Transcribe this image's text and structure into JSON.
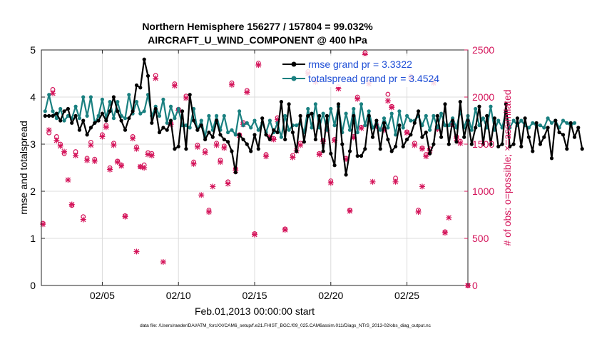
{
  "chart_data": {
    "type": "line",
    "title_line1": "Northern Hemisphere 156277 / 157804 = 99.032%",
    "title_line2": "AIRCRAFT_U_WIND_COMPONENT @ 400 hPa",
    "xlabel": "Feb.01,2013 00:00:00 start",
    "ylabel_left": "rmse and totalspread",
    "ylabel_right": "# of obs: o=possible; ×=assimilated",
    "footer": "data file: /Users/raeder/DAI/ATM_forcXX/CAM6_setup/f.e21.FHIST_BGC.f09_025.CAM6assim.011/Diags_NTrS_2013-02/obs_diag_output.nc",
    "x_range_days": [
      1,
      29
    ],
    "x_tick_days": [
      5,
      10,
      15,
      20,
      25
    ],
    "x_tick_labels": [
      "02/05",
      "02/10",
      "02/15",
      "02/20",
      "02/25"
    ],
    "y_left_range": [
      0,
      5
    ],
    "y_left_ticks": [
      "0",
      "1",
      "2",
      "3",
      "4",
      "5"
    ],
    "y_right_range": [
      0,
      2500
    ],
    "y_right_ticks": [
      "0",
      "500",
      "1000",
      "1500",
      "2000",
      "2500"
    ],
    "grid": true,
    "legend_position": "top-right",
    "legend": [
      {
        "label": "rmse grand pr = 3.3322",
        "color": "#000000"
      },
      {
        "label": "totalspread grand pr = 3.4524",
        "color": "#1a8080"
      }
    ],
    "x_start_day": 1.25,
    "x_step_days": 0.25,
    "rmse": [
      3.6,
      3.6,
      3.6,
      3.65,
      3.5,
      3.7,
      3.75,
      3.45,
      3.6,
      3.3,
      3.5,
      3.2,
      3.35,
      3.45,
      3.5,
      3.65,
      3.5,
      3.7,
      4.0,
      3.7,
      3.5,
      3.3,
      3.55,
      3.7,
      4.25,
      4.2,
      4.8,
      4.45,
      3.45,
      3.75,
      3.25,
      3.35,
      3.3,
      3.5,
      2.9,
      2.95,
      3.7,
      2.9,
      4.05,
      3.5,
      3.3,
      3.4,
      3.1,
      3.25,
      3.15,
      3.5,
      3.2,
      3.1,
      3.05,
      2.85,
      2.4,
      3.2,
      3.1,
      3.0,
      2.85,
      3.2,
      2.9,
      3.55,
      3.2,
      3.1,
      3.3,
      3.25,
      3.9,
      3.1,
      3.85,
      3.25,
      2.85,
      3.6,
      3.05,
      3.6,
      3.65,
      3.1,
      3.6,
      2.85,
      3.6,
      2.8,
      2.55,
      3.85,
      3.0,
      2.35,
      2.85,
      3.6,
      2.75,
      2.75,
      2.9,
      3.6,
      3.15,
      3.5,
      2.9,
      3.45,
      3.1,
      2.85,
      2.95,
      3.4,
      2.95,
      3.1,
      3.2,
      3.45,
      3.7,
      3.15,
      3.25,
      2.8,
      3.0,
      3.6,
      3.15,
      3.85,
      3.0,
      3.5,
      3.05,
      3.9,
      3.15,
      3.5,
      3.0,
      3.35,
      3.8,
      3.0,
      3.6,
      3.0,
      3.55,
      2.95,
      3.0,
      3.85,
      2.95,
      3.0,
      3.55,
      2.95,
      3.55,
      3.15,
      2.85,
      3.45,
      3.0,
      3.15,
      3.35,
      2.7,
      3.5,
      3.25,
      3.2,
      2.9,
      3.45,
      3.15,
      3.35,
      2.9
    ],
    "totalspread": [
      3.7,
      4.05,
      3.7,
      3.55,
      3.75,
      3.5,
      3.6,
      3.55,
      3.8,
      3.55,
      4.0,
      3.6,
      4.0,
      3.45,
      3.6,
      3.95,
      3.55,
      3.9,
      3.55,
      3.9,
      3.6,
      3.55,
      4.05,
      3.65,
      3.9,
      3.65,
      3.7,
      4.05,
      3.6,
      3.8,
      3.6,
      3.95,
      3.45,
      3.8,
      3.55,
      3.75,
      3.4,
      3.4,
      3.35,
      3.75,
      3.3,
      3.5,
      3.15,
      3.6,
      3.3,
      3.6,
      3.3,
      3.6,
      3.25,
      3.3,
      3.2,
      3.7,
      3.4,
      3.45,
      3.35,
      3.5,
      3.3,
      3.45,
      3.25,
      3.5,
      3.25,
      3.45,
      3.15,
      3.6,
      3.3,
      3.4,
      3.4,
      3.45,
      3.25,
      3.75,
      3.35,
      3.85,
      3.35,
      3.65,
      3.3,
      3.75,
      3.4,
      3.8,
      3.25,
      3.65,
      3.3,
      3.75,
      3.25,
      3.85,
      3.4,
      3.7,
      3.35,
      3.45,
      3.3,
      3.55,
      3.35,
      3.65,
      3.2,
      3.7,
      3.35,
      3.6,
      3.5,
      3.5,
      3.6,
      3.4,
      3.6,
      3.3,
      3.6,
      3.35,
      3.65,
      3.4,
      3.4,
      3.55,
      3.35,
      3.7,
      3.35,
      3.6,
      3.3,
      3.75,
      3.4,
      3.55,
      3.35,
      3.8,
      3.3,
      3.5,
      3.35,
      3.7,
      3.35,
      3.5,
      3.4,
      3.5,
      3.4,
      3.35,
      3.45,
      3.4,
      3.4,
      3.35,
      3.55,
      3.45,
      3.5,
      3.35,
      3.5,
      3.45,
      3.4,
      3.45
    ],
    "obs_possible": [
      [
        1.1,
        660
      ],
      [
        1.5,
        1620
      ],
      [
        1.75,
        2080
      ],
      [
        2.0,
        1580
      ],
      [
        2.25,
        1500
      ],
      [
        2.5,
        1400
      ],
      [
        3.0,
        850
      ],
      [
        3.25,
        1420
      ],
      [
        3.75,
        730
      ],
      [
        4.0,
        1350
      ],
      [
        4.25,
        1520
      ],
      [
        4.5,
        1340
      ],
      [
        5.0,
        1600
      ],
      [
        5.25,
        1700
      ],
      [
        5.5,
        1250
      ],
      [
        5.75,
        1510
      ],
      [
        6.0,
        1320
      ],
      [
        6.25,
        1280
      ],
      [
        6.5,
        740
      ],
      [
        7.0,
        1580
      ],
      [
        7.25,
        1470
      ],
      [
        7.5,
        1260
      ],
      [
        7.75,
        1280
      ],
      [
        8.0,
        1410
      ],
      [
        8.25,
        1400
      ],
      [
        8.5,
        2230
      ],
      [
        9.5,
        1720
      ],
      [
        9.75,
        2140
      ],
      [
        10.0,
        1870
      ],
      [
        10.5,
        2010
      ],
      [
        11.0,
        1310
      ],
      [
        11.25,
        1490
      ],
      [
        11.75,
        1430
      ],
      [
        12.0,
        800
      ],
      [
        12.5,
        1510
      ],
      [
        12.75,
        1330
      ],
      [
        13.0,
        1480
      ],
      [
        13.25,
        1100
      ],
      [
        13.5,
        2150
      ],
      [
        13.75,
        1240
      ],
      [
        14.0,
        1600
      ],
      [
        14.25,
        1730
      ],
      [
        14.5,
        2070
      ],
      [
        15.0,
        550
      ],
      [
        15.25,
        2360
      ],
      [
        15.75,
        1390
      ],
      [
        16.25,
        1560
      ],
      [
        16.5,
        1780
      ],
      [
        17.0,
        600
      ],
      [
        17.5,
        1380
      ],
      [
        18.0,
        1510
      ],
      [
        18.5,
        2270
      ],
      [
        19.0,
        2180
      ],
      [
        19.25,
        1400
      ],
      [
        19.5,
        1540
      ],
      [
        20.0,
        1110
      ],
      [
        20.25,
        1550
      ],
      [
        20.5,
        2110
      ],
      [
        21.0,
        1350
      ],
      [
        21.25,
        800
      ],
      [
        21.5,
        1580
      ],
      [
        21.75,
        2000
      ],
      [
        22.0,
        1680
      ],
      [
        22.25,
        2470
      ],
      [
        22.5,
        2160
      ],
      [
        23.0,
        1700
      ],
      [
        23.5,
        1660
      ],
      [
        23.75,
        2030
      ],
      [
        24.0,
        1900
      ],
      [
        24.25,
        1140
      ],
      [
        25.0,
        1630
      ],
      [
        25.25,
        2220
      ],
      [
        25.5,
        1510
      ],
      [
        25.75,
        800
      ],
      [
        26.0,
        1460
      ],
      [
        26.25,
        1390
      ],
      [
        26.5,
        1450
      ],
      [
        26.75,
        2170
      ],
      [
        27.0,
        1680
      ],
      [
        27.5,
        570
      ],
      [
        28.0,
        1730
      ],
      [
        28.25,
        1580
      ],
      [
        28.5,
        1530
      ],
      [
        29.0,
        0
      ]
    ],
    "obs_assimilated": [
      [
        1.1,
        650
      ],
      [
        1.5,
        1650
      ],
      [
        1.75,
        2040
      ],
      [
        2.0,
        1540
      ],
      [
        2.25,
        1480
      ],
      [
        2.5,
        1420
      ],
      [
        3.0,
        860
      ],
      [
        3.25,
        1380
      ],
      [
        3.75,
        700
      ],
      [
        4.0,
        1330
      ],
      [
        4.25,
        1490
      ],
      [
        4.5,
        1320
      ],
      [
        5.0,
        1580
      ],
      [
        5.25,
        1680
      ],
      [
        5.5,
        1230
      ],
      [
        5.75,
        1490
      ],
      [
        6.0,
        1310
      ],
      [
        6.25,
        1270
      ],
      [
        6.5,
        730
      ],
      [
        7.0,
        1560
      ],
      [
        7.25,
        1450
      ],
      [
        7.5,
        1260
      ],
      [
        7.75,
        1250
      ],
      [
        8.0,
        1390
      ],
      [
        8.25,
        1380
      ],
      [
        8.5,
        2200
      ],
      [
        9.5,
        1710
      ],
      [
        9.75,
        2120
      ],
      [
        10.0,
        1860
      ],
      [
        10.5,
        1990
      ],
      [
        11.0,
        1290
      ],
      [
        11.25,
        1470
      ],
      [
        11.75,
        1410
      ],
      [
        12.0,
        780
      ],
      [
        12.5,
        1490
      ],
      [
        12.75,
        1310
      ],
      [
        13.0,
        1460
      ],
      [
        13.25,
        1080
      ],
      [
        13.5,
        2130
      ],
      [
        13.75,
        1220
      ],
      [
        14.0,
        1590
      ],
      [
        14.25,
        1710
      ],
      [
        14.5,
        2050
      ],
      [
        15.0,
        540
      ],
      [
        15.25,
        2340
      ],
      [
        15.75,
        1370
      ],
      [
        16.25,
        1550
      ],
      [
        16.5,
        1760
      ],
      [
        17.0,
        590
      ],
      [
        17.5,
        1360
      ],
      [
        18.0,
        1490
      ],
      [
        18.5,
        2250
      ],
      [
        19.0,
        2160
      ],
      [
        19.25,
        1390
      ],
      [
        19.5,
        1530
      ],
      [
        20.0,
        1090
      ],
      [
        20.25,
        1540
      ],
      [
        20.5,
        2090
      ],
      [
        21.0,
        1340
      ],
      [
        21.25,
        790
      ],
      [
        21.5,
        1570
      ],
      [
        21.75,
        1980
      ],
      [
        22.0,
        1670
      ],
      [
        22.25,
        2450
      ],
      [
        22.5,
        2140
      ],
      [
        23.0,
        1690
      ],
      [
        23.5,
        1650
      ],
      [
        23.75,
        1960
      ],
      [
        24.0,
        1890
      ],
      [
        24.25,
        1100
      ],
      [
        25.0,
        1620
      ],
      [
        25.25,
        2200
      ],
      [
        25.5,
        1490
      ],
      [
        25.75,
        780
      ],
      [
        26.0,
        1450
      ],
      [
        26.25,
        1370
      ],
      [
        26.5,
        1430
      ],
      [
        26.75,
        2150
      ],
      [
        27.0,
        1660
      ],
      [
        27.5,
        560
      ],
      [
        28.0,
        1710
      ],
      [
        28.25,
        1560
      ],
      [
        28.5,
        1510
      ],
      [
        29.0,
        0
      ],
      [
        2.75,
        1120
      ],
      [
        7.25,
        360
      ],
      [
        9.0,
        250
      ],
      [
        11.5,
        960
      ],
      [
        12.25,
        1050
      ],
      [
        16.0,
        1580
      ],
      [
        17.75,
        1430
      ],
      [
        19.75,
        1650
      ],
      [
        22.75,
        1100
      ],
      [
        26.0,
        1050
      ],
      [
        27.75,
        720
      ]
    ]
  },
  "colors": {
    "rmse": "#000000",
    "totalspread": "#1a8080",
    "obs": "#d4145a",
    "legend_text": "#1f4fd6",
    "grid": "#dcdcdc"
  }
}
